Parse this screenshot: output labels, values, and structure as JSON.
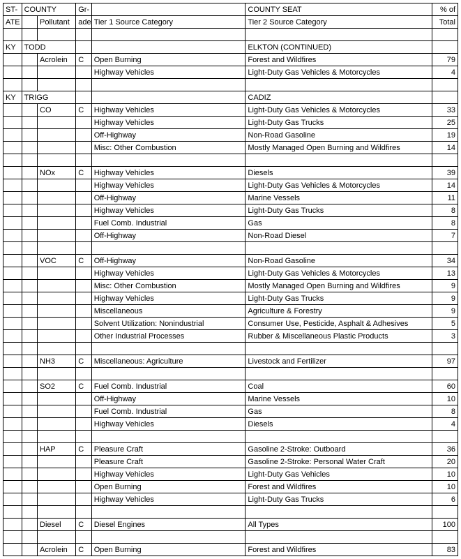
{
  "header": {
    "r1": {
      "state": "ST-",
      "county": "COUNTY",
      "grade": "Gr-",
      "seat": "COUNTY SEAT",
      "pct": "% of"
    },
    "r2": {
      "state": "ATE",
      "pollutant": "Pollutant",
      "grade": "ade",
      "tier1": "Tier 1 Source Category",
      "tier2": "Tier 2 Source Category",
      "pct": "Total"
    }
  },
  "rows": [
    {
      "state": "",
      "ci": "",
      "pollutant": "",
      "grade": "",
      "tier1": "",
      "tier2": "",
      "pct": ""
    },
    {
      "state": "KY",
      "ci": "TODD",
      "pollutant": "",
      "grade": "",
      "tier1": "",
      "tier2": "ELKTON (CONTINUED)",
      "pct": ""
    },
    {
      "state": "",
      "ci": "",
      "pollutant": "Acrolein",
      "grade": "C",
      "tier1": "Open Burning",
      "tier2": "Forest and Wildfires",
      "pct": "79"
    },
    {
      "state": "",
      "ci": "",
      "pollutant": "",
      "grade": "",
      "tier1": "Highway Vehicles",
      "tier2": "Light-Duty Gas Vehicles & Motorcycles",
      "pct": "4"
    },
    {
      "state": "",
      "ci": "",
      "pollutant": "",
      "grade": "",
      "tier1": "",
      "tier2": "",
      "pct": ""
    },
    {
      "state": "KY",
      "ci": "TRIGG",
      "pollutant": "",
      "grade": "",
      "tier1": "",
      "tier2": "CADIZ",
      "pct": ""
    },
    {
      "state": "",
      "ci": "",
      "pollutant": "CO",
      "grade": "C",
      "tier1": "Highway Vehicles",
      "tier2": "Light-Duty Gas Vehicles & Motorcycles",
      "pct": "33"
    },
    {
      "state": "",
      "ci": "",
      "pollutant": "",
      "grade": "",
      "tier1": "Highway Vehicles",
      "tier2": "Light-Duty Gas Trucks",
      "pct": "25"
    },
    {
      "state": "",
      "ci": "",
      "pollutant": "",
      "grade": "",
      "tier1": "Off-Highway",
      "tier2": "Non-Road Gasoline",
      "pct": "19"
    },
    {
      "state": "",
      "ci": "",
      "pollutant": "",
      "grade": "",
      "tier1": "Misc: Other Combustion",
      "tier2": "Mostly Managed Open Burning and Wildfires",
      "pct": "14"
    },
    {
      "state": "",
      "ci": "",
      "pollutant": "",
      "grade": "",
      "tier1": "",
      "tier2": "",
      "pct": ""
    },
    {
      "state": "",
      "ci": "",
      "pollutant": "NOx",
      "grade": "C",
      "tier1": "Highway Vehicles",
      "tier2": "Diesels",
      "pct": "39"
    },
    {
      "state": "",
      "ci": "",
      "pollutant": "",
      "grade": "",
      "tier1": "Highway Vehicles",
      "tier2": "Light-Duty Gas Vehicles & Motorcycles",
      "pct": "14"
    },
    {
      "state": "",
      "ci": "",
      "pollutant": "",
      "grade": "",
      "tier1": "Off-Highway",
      "tier2": "Marine Vessels",
      "pct": "11"
    },
    {
      "state": "",
      "ci": "",
      "pollutant": "",
      "grade": "",
      "tier1": "Highway Vehicles",
      "tier2": "Light-Duty Gas Trucks",
      "pct": "8"
    },
    {
      "state": "",
      "ci": "",
      "pollutant": "",
      "grade": "",
      "tier1": "Fuel Comb. Industrial",
      "tier2": "Gas",
      "pct": "8"
    },
    {
      "state": "",
      "ci": "",
      "pollutant": "",
      "grade": "",
      "tier1": "Off-Highway",
      "tier2": "Non-Road Diesel",
      "pct": "7"
    },
    {
      "state": "",
      "ci": "",
      "pollutant": "",
      "grade": "",
      "tier1": "",
      "tier2": "",
      "pct": ""
    },
    {
      "state": "",
      "ci": "",
      "pollutant": "VOC",
      "grade": "C",
      "tier1": "Off-Highway",
      "tier2": "Non-Road Gasoline",
      "pct": "34"
    },
    {
      "state": "",
      "ci": "",
      "pollutant": "",
      "grade": "",
      "tier1": "Highway Vehicles",
      "tier2": "Light-Duty Gas Vehicles & Motorcycles",
      "pct": "13"
    },
    {
      "state": "",
      "ci": "",
      "pollutant": "",
      "grade": "",
      "tier1": "Misc: Other Combustion",
      "tier2": "Mostly Managed Open Burning and Wildfires",
      "pct": "9"
    },
    {
      "state": "",
      "ci": "",
      "pollutant": "",
      "grade": "",
      "tier1": "Highway Vehicles",
      "tier2": "Light-Duty Gas Trucks",
      "pct": "9"
    },
    {
      "state": "",
      "ci": "",
      "pollutant": "",
      "grade": "",
      "tier1": "Miscellaneous",
      "tier2": "Agriculture & Forestry",
      "pct": "9"
    },
    {
      "state": "",
      "ci": "",
      "pollutant": "",
      "grade": "",
      "tier1": "Solvent Utilization: Nonindustrial",
      "tier2": "Consumer Use, Pesticide, Asphalt & Adhesives",
      "pct": "5"
    },
    {
      "state": "",
      "ci": "",
      "pollutant": "",
      "grade": "",
      "tier1": "Other Industrial Processes",
      "tier2": "Rubber & Miscellaneous Plastic Products",
      "pct": "3"
    },
    {
      "state": "",
      "ci": "",
      "pollutant": "",
      "grade": "",
      "tier1": "",
      "tier2": "",
      "pct": ""
    },
    {
      "state": "",
      "ci": "",
      "pollutant": "NH3",
      "grade": "C",
      "tier1": "Miscellaneous: Agriculture",
      "tier2": "Livestock and Fertilizer",
      "pct": "97"
    },
    {
      "state": "",
      "ci": "",
      "pollutant": "",
      "grade": "",
      "tier1": "",
      "tier2": "",
      "pct": ""
    },
    {
      "state": "",
      "ci": "",
      "pollutant": "SO2",
      "grade": "C",
      "tier1": "Fuel Comb. Industrial",
      "tier2": "Coal",
      "pct": "60"
    },
    {
      "state": "",
      "ci": "",
      "pollutant": "",
      "grade": "",
      "tier1": "Off-Highway",
      "tier2": "Marine Vessels",
      "pct": "10"
    },
    {
      "state": "",
      "ci": "",
      "pollutant": "",
      "grade": "",
      "tier1": "Fuel Comb. Industrial",
      "tier2": "Gas",
      "pct": "8"
    },
    {
      "state": "",
      "ci": "",
      "pollutant": "",
      "grade": "",
      "tier1": "Highway Vehicles",
      "tier2": "Diesels",
      "pct": "4"
    },
    {
      "state": "",
      "ci": "",
      "pollutant": "",
      "grade": "",
      "tier1": "",
      "tier2": "",
      "pct": ""
    },
    {
      "state": "",
      "ci": "",
      "pollutant": "HAP",
      "grade": "C",
      "tier1": "Pleasure Craft",
      "tier2": "Gasoline 2-Stroke: Outboard",
      "pct": "36"
    },
    {
      "state": "",
      "ci": "",
      "pollutant": "",
      "grade": "",
      "tier1": "Pleasure Craft",
      "tier2": "Gasoline 2-Stroke: Personal Water Craft",
      "pct": "20"
    },
    {
      "state": "",
      "ci": "",
      "pollutant": "",
      "grade": "",
      "tier1": "Highway Vehicles",
      "tier2": "Light-Duty Gas Vehicles",
      "pct": "10"
    },
    {
      "state": "",
      "ci": "",
      "pollutant": "",
      "grade": "",
      "tier1": "Open Burning",
      "tier2": "Forest and Wildfires",
      "pct": "10"
    },
    {
      "state": "",
      "ci": "",
      "pollutant": "",
      "grade": "",
      "tier1": "Highway Vehicles",
      "tier2": "Light-Duty Gas Trucks",
      "pct": "6"
    },
    {
      "state": "",
      "ci": "",
      "pollutant": "",
      "grade": "",
      "tier1": "",
      "tier2": "",
      "pct": ""
    },
    {
      "state": "",
      "ci": "",
      "pollutant": "Diesel",
      "grade": "C",
      "tier1": "Diesel Engines",
      "tier2": "All Types",
      "pct": "100"
    },
    {
      "state": "",
      "ci": "",
      "pollutant": "",
      "grade": "",
      "tier1": "",
      "tier2": "",
      "pct": ""
    },
    {
      "state": "",
      "ci": "",
      "pollutant": "Acrolein",
      "grade": "C",
      "tier1": "Open Burning",
      "tier2": "Forest and Wildfires",
      "pct": "83"
    }
  ]
}
